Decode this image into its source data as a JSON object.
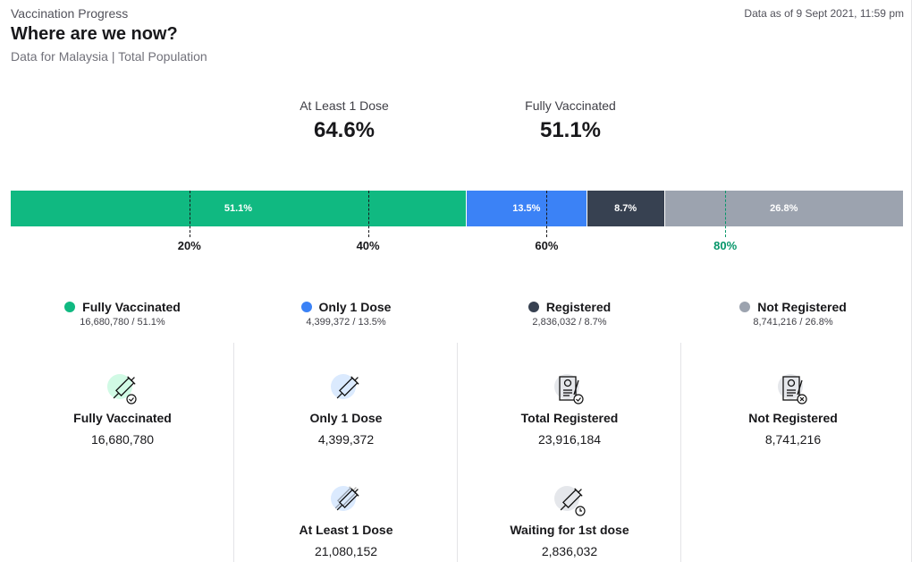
{
  "header": {
    "crumb": "Vaccination Progress",
    "title": "Where are we now?",
    "subtitle": "Data for Malaysia | Total Population",
    "as_of": "Data as of 9 Sept 2021, 11:59 pm"
  },
  "stats": [
    {
      "label": "At Least 1 Dose",
      "value": "64.6%"
    },
    {
      "label": "Fully Vaccinated",
      "value": "51.1%"
    }
  ],
  "bar": {
    "segments": [
      {
        "label": "51.1%",
        "value": 51.1,
        "color": "#10b981"
      },
      {
        "label": "13.5%",
        "value": 13.5,
        "color": "#3b82f6"
      },
      {
        "label": "8.7%",
        "value": 8.7,
        "color": "#374151"
      },
      {
        "label": "26.8%",
        "value": 26.8,
        "color": "#9ca3af"
      }
    ],
    "ticks": [
      {
        "label": "20%",
        "value": 20,
        "color": "#18181b"
      },
      {
        "label": "40%",
        "value": 40,
        "color": "#18181b"
      },
      {
        "label": "60%",
        "value": 60,
        "color": "#18181b"
      },
      {
        "label": "80%",
        "value": 80,
        "color": "#059669"
      }
    ]
  },
  "legend": [
    {
      "label": "Fully Vaccinated",
      "detail": "16,680,780 / 51.1%",
      "color": "#10b981"
    },
    {
      "label": "Only 1 Dose",
      "detail": "4,399,372 / 13.5%",
      "color": "#3b82f6"
    },
    {
      "label": "Registered",
      "detail": "2,836,032 / 8.7%",
      "color": "#374151"
    },
    {
      "label": "Not Registered",
      "detail": "8,741,216 / 26.8%",
      "color": "#9ca3af"
    }
  ],
  "cards": [
    {
      "label": "Fully Vaccinated",
      "count": "16,680,780",
      "icon": "syringe-check-icon",
      "bg": "#d1fae5"
    },
    {
      "label": "Only 1 Dose",
      "count": "4,399,372",
      "icon": "syringe-icon",
      "bg": "#dbeafe"
    },
    {
      "label": "Total Registered",
      "count": "23,916,184",
      "icon": "registration-form-check-icon",
      "bg": "#e5e7eb"
    },
    {
      "label": "Not Registered",
      "count": "8,741,216",
      "icon": "registration-form-cross-icon",
      "bg": "#e5e7eb"
    },
    {
      "label": "At Least 1 Dose",
      "count": "21,080,152",
      "icon": "syringe-double-icon",
      "bg": "#dbeafe"
    },
    {
      "label": "Waiting for 1st dose",
      "count": "2,836,032",
      "icon": "syringe-clock-icon",
      "bg": "#e5e7eb"
    }
  ]
}
